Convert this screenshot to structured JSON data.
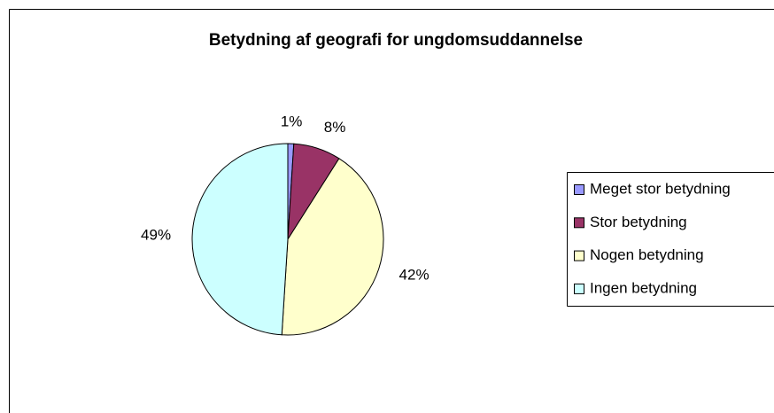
{
  "chart_data": {
    "type": "pie",
    "title": "Betydning af geografi for ungdomsuddannelse",
    "categories": [
      "Meget stor betydning",
      "Stor betydning",
      "Nogen betydning",
      "Ingen betydning"
    ],
    "values": [
      1,
      8,
      42,
      49
    ],
    "value_labels": [
      "1%",
      "8%",
      "42%",
      "49%"
    ],
    "colors": [
      "#9999ff",
      "#993366",
      "#ffffcc",
      "#ccffff"
    ],
    "legend": "right"
  }
}
